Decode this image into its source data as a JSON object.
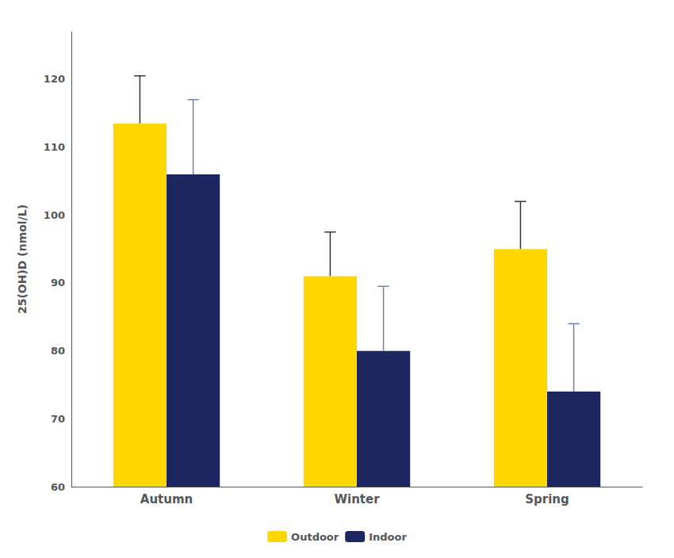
{
  "chart_data": {
    "type": "bar",
    "categories": [
      "Autumn",
      "Winter",
      "Spring"
    ],
    "series": [
      {
        "name": "Outdoor",
        "color": "#FFD700",
        "values": [
          113.5,
          91.0,
          95.0
        ],
        "errors": [
          7.0,
          6.5,
          7.0
        ]
      },
      {
        "name": "Indoor",
        "color": "#1C2760",
        "values": [
          106.0,
          80.0,
          74.0
        ],
        "errors": [
          11.0,
          9.5,
          10.0
        ]
      }
    ],
    "ylabel": "25(OH)D (nmol/L)",
    "ylim": [
      60,
      127
    ],
    "yticks": [
      60,
      70,
      80,
      90,
      100,
      110,
      120
    ],
    "grid": false,
    "legend": "bottom"
  }
}
